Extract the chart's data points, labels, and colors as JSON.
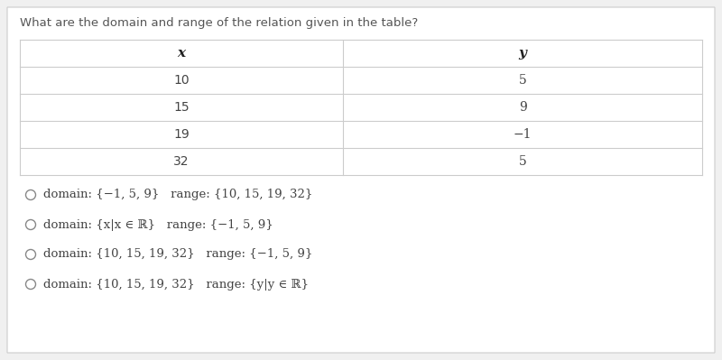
{
  "title": "What are the domain and range of the relation given in the table?",
  "table_headers": [
    "x",
    "y"
  ],
  "table_data": [
    [
      "10",
      "5"
    ],
    [
      "15",
      "9"
    ],
    [
      "19",
      "−1"
    ],
    [
      "32",
      "5"
    ]
  ],
  "option_texts": [
    "domain: {−1, 5, 9}   range: {10, 15, 19, 32}",
    "domain: {x|x ∈ ℝ}   range: {−1, 5, 9}",
    "domain: {10, 15, 19, 32}   range: {−1, 5, 9}",
    "domain: {10, 15, 19, 32}   range: {y|y ∈ ℝ}"
  ],
  "bg_color": "#ffffff",
  "outer_bg": "#f0f0f0",
  "table_bg": "#ffffff",
  "table_border_color": "#cccccc",
  "title_fontsize": 9.5,
  "option_fontsize": 9.5,
  "table_fontsize": 10,
  "title_color": "#555555",
  "data_color": "#444444"
}
